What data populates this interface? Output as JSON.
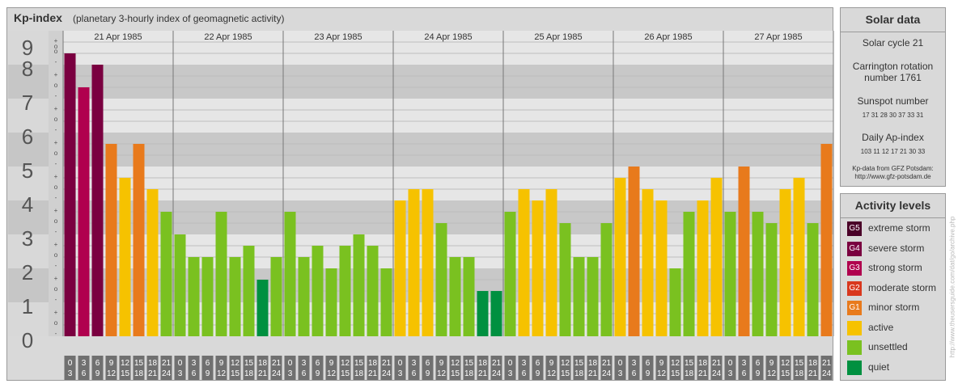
{
  "header": {
    "title": "Kp-index",
    "subtitle": "(planetary 3-hourly index of geomagnetic activity)"
  },
  "chart_data": {
    "type": "bar",
    "y_range": [
      0,
      9
    ],
    "y_tick_labels": [
      "0",
      "1",
      "2",
      "3",
      "4",
      "5",
      "6",
      "7",
      "8",
      "9"
    ],
    "subdivision_labels": [
      "+",
      "o",
      "-"
    ],
    "top_subdivision_label": "o",
    "days": [
      "21 Apr 1985",
      "22 Apr 1985",
      "23 Apr 1985",
      "24 Apr 1985",
      "25 Apr 1985",
      "26 Apr 1985",
      "27 Apr 1985"
    ],
    "interval_starts": [
      "0",
      "3",
      "6",
      "9",
      "12",
      "15",
      "18",
      "21"
    ],
    "interval_ends": [
      "3",
      "6",
      "9",
      "12",
      "15",
      "18",
      "21",
      "24"
    ],
    "values": [
      [
        8.333,
        7.333,
        8.0,
        5.667,
        4.667,
        5.667,
        4.333,
        3.667
      ],
      [
        3.0,
        2.333,
        2.333,
        3.667,
        2.333,
        2.667,
        1.667,
        2.333
      ],
      [
        3.667,
        2.333,
        2.667,
        2.0,
        2.667,
        3.0,
        2.667,
        2.0
      ],
      [
        4.0,
        4.333,
        4.333,
        3.333,
        2.333,
        2.333,
        1.333,
        1.333
      ],
      [
        3.667,
        4.333,
        4.0,
        4.333,
        3.333,
        2.333,
        2.333,
        3.333
      ],
      [
        4.667,
        5.0,
        4.333,
        4.0,
        2.0,
        3.667,
        4.0,
        4.667
      ],
      [
        3.667,
        5.0,
        3.667,
        3.333,
        4.333,
        4.667,
        3.333,
        5.667
      ]
    ],
    "colors": {
      "quiet": "#009040",
      "unsettled": "#7ac120",
      "active": "#f6c200",
      "minor_storm": "#e87a1c",
      "moderate_storm": "#d9381e",
      "strong_storm": "#b0004e",
      "severe_storm": "#7a0040",
      "extreme_storm": "#4a0028"
    }
  },
  "solar": {
    "heading": "Solar data",
    "cycle": "Solar cycle 21",
    "carrington_line1": "Carrington rotation",
    "carrington_line2": "number 1761",
    "sunspot_label": "Sunspot number",
    "sunspot_values": "17 31 28 30 37 33 31",
    "ap_label": "Daily Ap-index",
    "ap_values": "103 11 12 17 21 30 33",
    "credit_line1": "Kp-data from GFZ Potsdam:",
    "credit_line2": "http://www.gfz-potsdam.de"
  },
  "legend": {
    "heading": "Activity levels",
    "items": [
      {
        "badge": "G5",
        "label": "extreme storm",
        "color": "#4a0028"
      },
      {
        "badge": "G4",
        "label": "severe storm",
        "color": "#7a0040"
      },
      {
        "badge": "G3",
        "label": "strong storm",
        "color": "#b0004e"
      },
      {
        "badge": "G2",
        "label": "moderate storm",
        "color": "#d9381e"
      },
      {
        "badge": "G1",
        "label": "minor storm",
        "color": "#e87a1c"
      },
      {
        "badge": "",
        "label": "active",
        "color": "#f6c200"
      },
      {
        "badge": "",
        "label": "unsettled",
        "color": "#7ac120"
      },
      {
        "badge": "",
        "label": "quiet",
        "color": "#009040"
      }
    ]
  },
  "watermark": "http://www.theusersguide.com/dat/go/archive.php"
}
